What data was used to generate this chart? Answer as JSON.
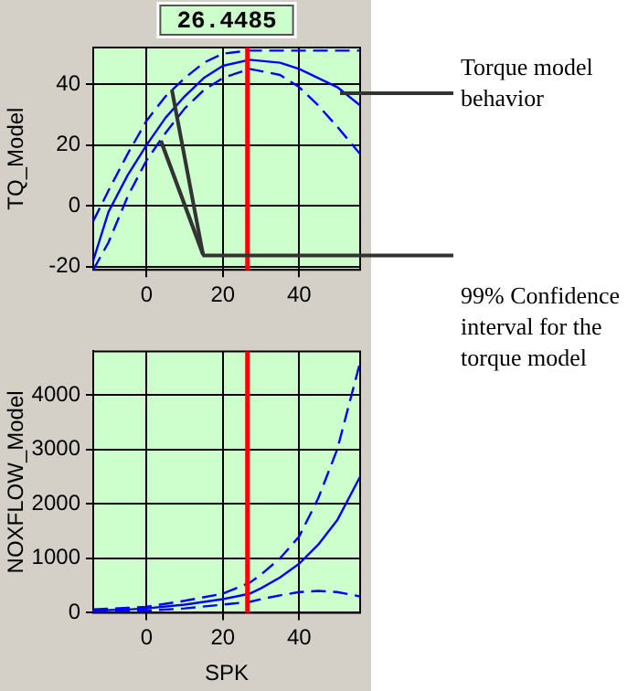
{
  "chart_data": [
    {
      "type": "line",
      "ylabel": "TQ_Model",
      "annotations": [
        "Torque model behavior",
        "99% Confidence interval for the torque model"
      ],
      "x": [
        -14,
        -10,
        -5,
        0,
        5,
        10,
        15,
        20,
        27,
        35,
        40,
        45,
        50,
        56
      ],
      "series": [
        {
          "color": "#0000ff",
          "line_style": "dashed",
          "values": [
            -5,
            5,
            17,
            28,
            36,
            42,
            47,
            50,
            51,
            51,
            51,
            51,
            51,
            51
          ]
        },
        {
          "color": "#0000ff",
          "line_style": "solid",
          "values": [
            -18,
            -2,
            10,
            20,
            29,
            36,
            42,
            46,
            48,
            47,
            45,
            42,
            39,
            33
          ]
        },
        {
          "color": "#0000ff",
          "line_style": "dashed",
          "values": [
            -21,
            -12,
            3,
            15,
            24,
            32,
            38,
            42,
            45,
            43,
            39,
            33,
            26,
            17
          ]
        }
      ],
      "xlim": [
        -14,
        56
      ],
      "xticks": [
        0,
        20,
        40
      ],
      "ylim": [
        -21,
        52
      ],
      "yticks": [
        -20,
        0,
        20,
        40
      ],
      "grid": true,
      "ref_lines": [
        {
          "axis": "x",
          "value": 26.4485,
          "label": "26.4485",
          "color": "#ff0000"
        }
      ]
    },
    {
      "type": "line",
      "xlabel": "SPK",
      "ylabel": "NOXFLOW_Model",
      "x": [
        -14,
        -5,
        0,
        10,
        20,
        27,
        30,
        35,
        40,
        45,
        50,
        56
      ],
      "series": [
        {
          "color": "#0000ff",
          "line_style": "dashed",
          "values": [
            60,
            90,
            110,
            220,
            350,
            550,
            700,
            1000,
            1400,
            2100,
            3000,
            4600
          ]
        },
        {
          "color": "#0000ff",
          "line_style": "solid",
          "values": [
            40,
            60,
            80,
            150,
            250,
            350,
            450,
            650,
            900,
            1250,
            1700,
            2500
          ]
        },
        {
          "color": "#0000ff",
          "line_style": "dashed",
          "values": [
            20,
            30,
            40,
            80,
            150,
            200,
            250,
            320,
            380,
            400,
            380,
            300
          ]
        }
      ],
      "xlim": [
        -14,
        56
      ],
      "xticks": [
        0,
        20,
        40
      ],
      "ylim": [
        0,
        4800
      ],
      "yticks": [
        0,
        1000,
        2000,
        3000,
        4000
      ],
      "grid": true,
      "ref_lines": [
        {
          "axis": "x",
          "value": 26.4485,
          "color": "#ff0000"
        }
      ]
    }
  ]
}
